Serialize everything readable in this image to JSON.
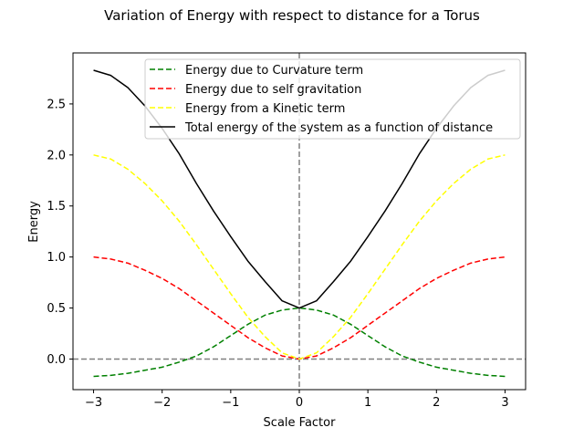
{
  "chart_data": {
    "type": "line",
    "title": "Variation of Energy with respect to distance for a Torus",
    "xlabel": "Scale Factor",
    "ylabel": "Energy",
    "xlim": [
      -3.3,
      3.3
    ],
    "ylim": [
      -0.3,
      3.0
    ],
    "xticks": [
      -3,
      -2,
      -1,
      0,
      1,
      2,
      3
    ],
    "yticks": [
      0.0,
      0.5,
      1.0,
      1.5,
      2.0,
      2.5
    ],
    "xtick_labels": [
      "−3",
      "−2",
      "−1",
      "0",
      "1",
      "2",
      "3"
    ],
    "ytick_labels": [
      "0.0",
      "0.5",
      "1.0",
      "1.5",
      "2.0",
      "2.5"
    ],
    "grid": false,
    "legend_position": "top-right",
    "x": [
      -3,
      -2.75,
      -2.5,
      -2.25,
      -2,
      -1.75,
      -1.5,
      -1.25,
      -1,
      -0.75,
      -0.5,
      -0.25,
      0,
      0.25,
      0.5,
      0.75,
      1,
      1.25,
      1.5,
      1.75,
      2,
      2.25,
      2.5,
      2.75,
      3
    ],
    "series": [
      {
        "name": "Energy due to Curvature term",
        "color": "#008000",
        "style": "dashed",
        "values": [
          -0.17,
          -0.16,
          -0.14,
          -0.11,
          -0.08,
          -0.03,
          0.03,
          0.12,
          0.23,
          0.34,
          0.43,
          0.48,
          0.5,
          0.48,
          0.43,
          0.34,
          0.23,
          0.12,
          0.03,
          -0.03,
          -0.08,
          -0.11,
          -0.14,
          -0.16,
          -0.17
        ]
      },
      {
        "name": "Energy due to self gravitation",
        "color": "#ff0000",
        "style": "dashed",
        "values": [
          1.0,
          0.98,
          0.94,
          0.87,
          0.79,
          0.69,
          0.57,
          0.45,
          0.33,
          0.21,
          0.11,
          0.03,
          0.0,
          0.03,
          0.11,
          0.21,
          0.33,
          0.45,
          0.57,
          0.69,
          0.79,
          0.87,
          0.94,
          0.98,
          1.0
        ]
      },
      {
        "name": "Energy from a Kinetic term",
        "color": "#ffff00",
        "style": "dashed",
        "values": [
          2.0,
          1.96,
          1.86,
          1.72,
          1.55,
          1.35,
          1.12,
          0.88,
          0.64,
          0.41,
          0.22,
          0.06,
          0.0,
          0.06,
          0.22,
          0.41,
          0.64,
          0.88,
          1.12,
          1.35,
          1.55,
          1.72,
          1.86,
          1.96,
          2.0
        ]
      },
      {
        "name": "Total energy of the system as a function of distance",
        "color": "#000000",
        "style": "solid",
        "values": [
          2.83,
          2.78,
          2.66,
          2.48,
          2.26,
          2.01,
          1.72,
          1.45,
          1.2,
          0.96,
          0.76,
          0.57,
          0.5,
          0.57,
          0.76,
          0.96,
          1.2,
          1.45,
          1.72,
          2.01,
          2.26,
          2.48,
          2.66,
          2.78,
          2.83
        ]
      }
    ],
    "reference_lines": [
      {
        "orientation": "horizontal",
        "value": 0,
        "color": "#808080",
        "style": "dashed"
      },
      {
        "orientation": "vertical",
        "value": 0,
        "color": "#808080",
        "style": "dashed"
      }
    ]
  }
}
